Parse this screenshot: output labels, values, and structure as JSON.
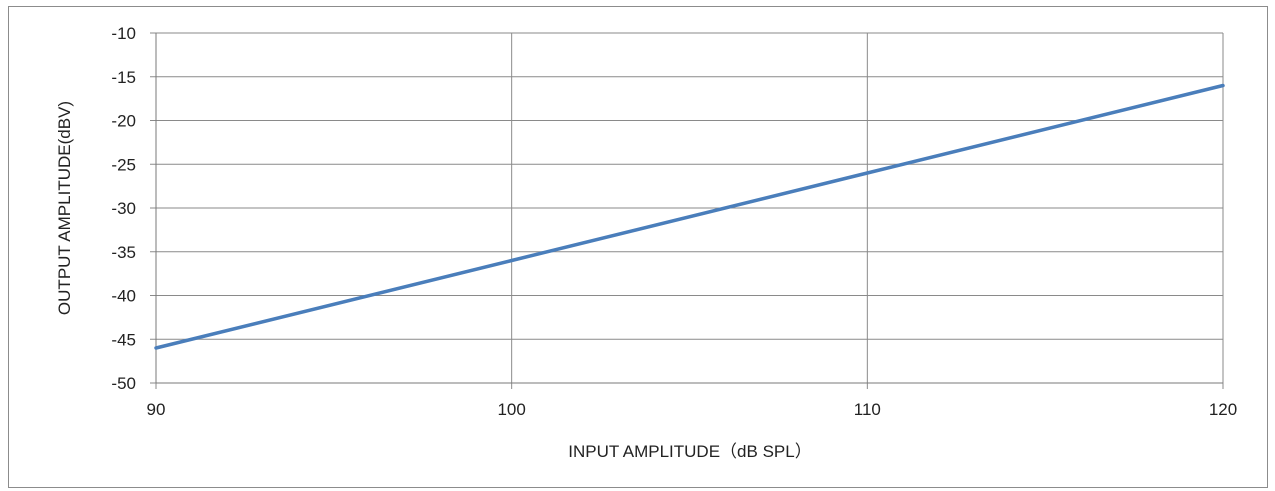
{
  "chart_data": {
    "type": "line",
    "title": "",
    "xlabel": "INPUT AMPLITUDE（dB SPL）",
    "ylabel": "OUTPUT AMPLITUDE(dBV)",
    "xlim": [
      90,
      120
    ],
    "ylim": [
      -50,
      -10
    ],
    "xticks": [
      "90",
      "100",
      "110",
      "120"
    ],
    "yticks": [
      "-10",
      "-15",
      "-20",
      "-25",
      "-30",
      "-35",
      "-40",
      "-45",
      "-50"
    ],
    "grid": true,
    "legend": "none",
    "series": [
      {
        "color": "#4a7ebb",
        "x": [
          90,
          100,
          110,
          120
        ],
        "y": [
          -46,
          -36,
          -26,
          -16
        ]
      }
    ]
  }
}
